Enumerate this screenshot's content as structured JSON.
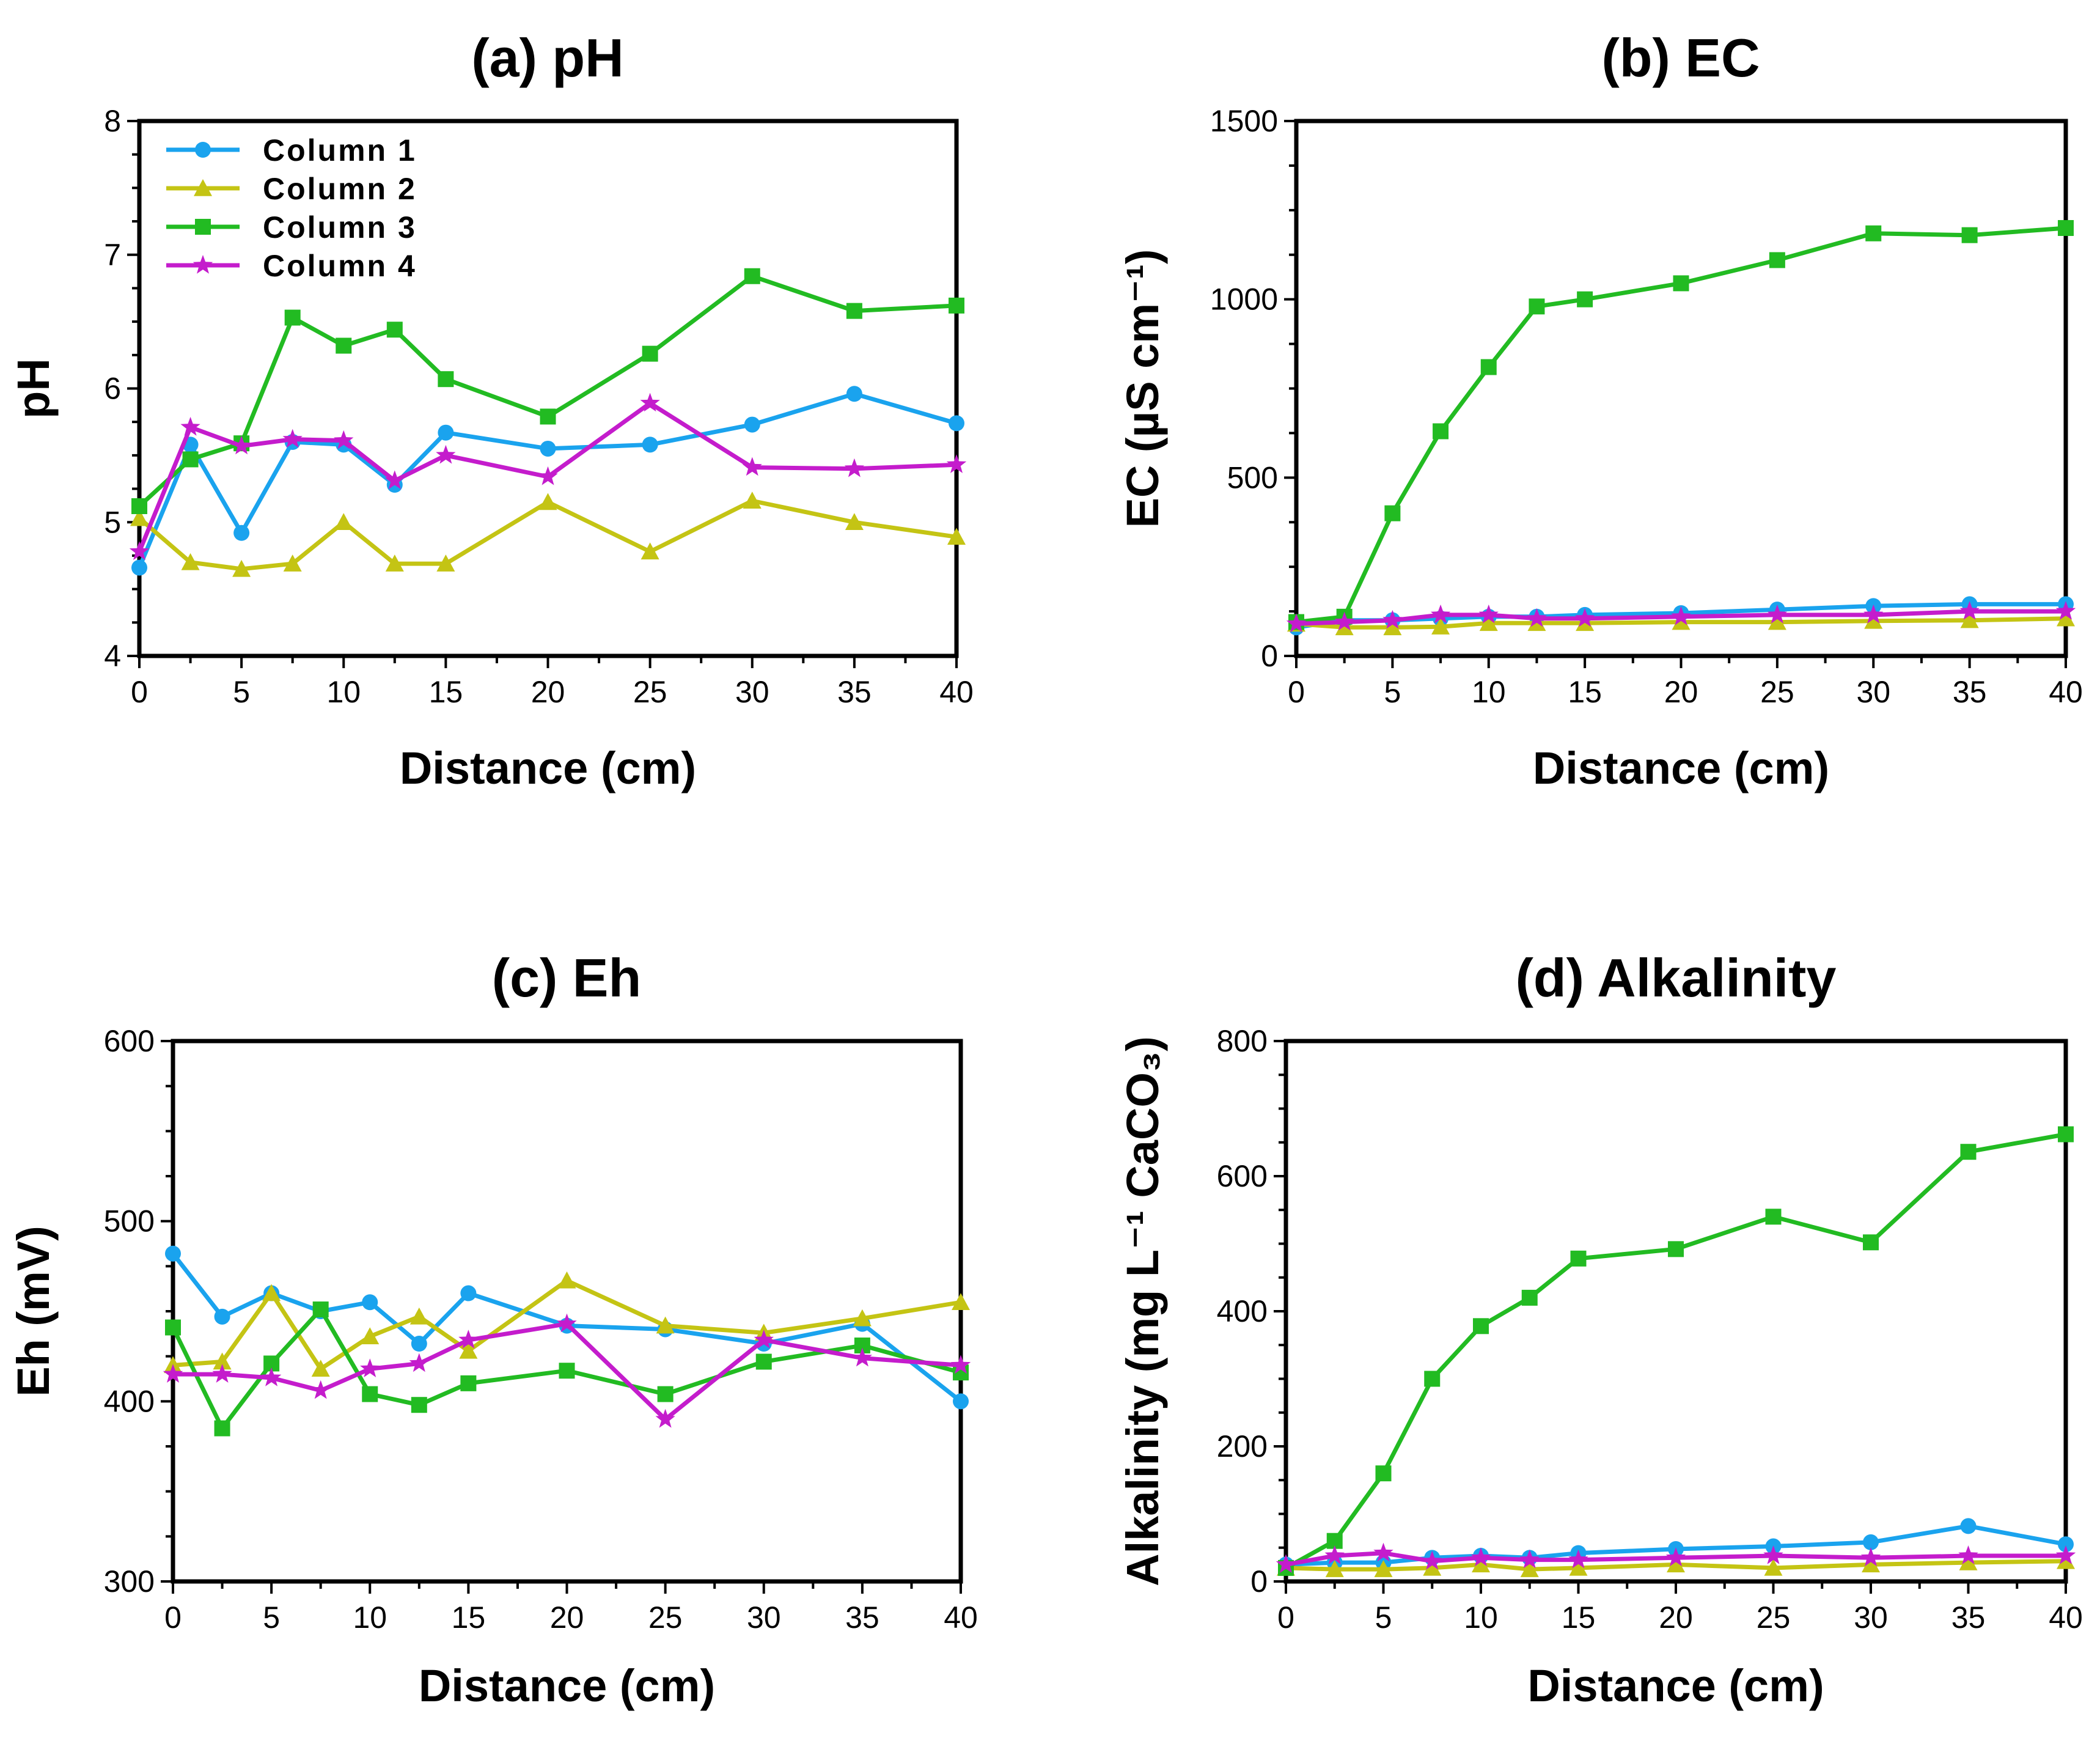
{
  "colors": {
    "Column 1": "#1aa3ee",
    "Column 2": "#c4c414",
    "Column 3": "#22bb22",
    "Column 4": "#c41ccc"
  },
  "legend": [
    "Column 1",
    "Column 2",
    "Column 3",
    "Column 4"
  ],
  "chart_data": [
    {
      "id": "a",
      "type": "line",
      "title": "(a) pH",
      "xlabel": "Distance (cm)",
      "ylabel": "pH",
      "xlim": [
        0,
        40
      ],
      "ylim": [
        4,
        8
      ],
      "xticks": [
        "0",
        "5",
        "10",
        "15",
        "20",
        "25",
        "30",
        "35",
        "40"
      ],
      "yticks": [
        "4",
        "5",
        "6",
        "7",
        "8"
      ],
      "x": [
        0,
        2.5,
        5,
        7.5,
        10,
        12.5,
        15,
        20,
        25,
        30,
        35,
        40
      ],
      "legend_position": "top-left",
      "series": [
        {
          "name": "Column 1",
          "marker": "circle",
          "values": [
            4.66,
            5.58,
            4.92,
            5.6,
            5.58,
            5.28,
            5.67,
            5.55,
            5.58,
            5.73,
            5.96,
            5.74
          ]
        },
        {
          "name": "Column 2",
          "marker": "triangle",
          "values": [
            5.03,
            4.7,
            4.65,
            4.69,
            5.0,
            4.69,
            4.69,
            5.15,
            4.78,
            5.16,
            5.0,
            4.89
          ]
        },
        {
          "name": "Column 3",
          "marker": "square",
          "values": [
            5.12,
            5.47,
            5.59,
            6.53,
            6.32,
            6.44,
            6.07,
            5.79,
            6.26,
            6.84,
            6.58,
            6.62
          ]
        },
        {
          "name": "Column 4",
          "marker": "star",
          "values": [
            4.78,
            5.71,
            5.57,
            5.62,
            5.61,
            5.31,
            5.5,
            5.34,
            5.89,
            5.41,
            5.4,
            5.43
          ]
        }
      ]
    },
    {
      "id": "b",
      "type": "line",
      "title": "(b) EC",
      "xlabel": "Distance (cm)",
      "ylabel": "EC (µS cm⁻¹)",
      "xlim": [
        0,
        40
      ],
      "ylim": [
        0,
        1500
      ],
      "xticks": [
        "0",
        "5",
        "10",
        "15",
        "20",
        "25",
        "30",
        "35",
        "40"
      ],
      "yticks": [
        "0",
        "500",
        "1000",
        "1500"
      ],
      "x": [
        0,
        2.5,
        5,
        7.5,
        10,
        12.5,
        15,
        20,
        25,
        30,
        35,
        40
      ],
      "series": [
        {
          "name": "Column 1",
          "marker": "circle",
          "values": [
            80,
            100,
            100,
            105,
            110,
            110,
            115,
            120,
            130,
            140,
            145,
            145
          ]
        },
        {
          "name": "Column 2",
          "marker": "triangle",
          "values": [
            90,
            80,
            80,
            82,
            92,
            92,
            92,
            95,
            95,
            98,
            100,
            105
          ]
        },
        {
          "name": "Column 3",
          "marker": "square",
          "values": [
            95,
            110,
            400,
            630,
            810,
            980,
            1000,
            1045,
            1110,
            1185,
            1180,
            1200
          ]
        },
        {
          "name": "Column 4",
          "marker": "star",
          "values": [
            90,
            95,
            100,
            115,
            115,
            105,
            105,
            110,
            115,
            115,
            125,
            125
          ]
        }
      ]
    },
    {
      "id": "c",
      "type": "line",
      "title": "(c) Eh",
      "xlabel": "Distance (cm)",
      "ylabel": "Eh (mV)",
      "xlim": [
        0,
        40
      ],
      "ylim": [
        300,
        600
      ],
      "xticks": [
        "0",
        "5",
        "10",
        "15",
        "20",
        "25",
        "30",
        "35",
        "40"
      ],
      "yticks": [
        "300",
        "400",
        "500",
        "600"
      ],
      "x": [
        0,
        2.5,
        5,
        7.5,
        10,
        12.5,
        15,
        20,
        25,
        30,
        35,
        40
      ],
      "series": [
        {
          "name": "Column 1",
          "marker": "circle",
          "values": [
            482,
            447,
            460,
            450,
            455,
            432,
            460,
            442,
            440,
            432,
            443,
            400
          ]
        },
        {
          "name": "Column 2",
          "marker": "triangle",
          "values": [
            420,
            422,
            460,
            418,
            436,
            447,
            428,
            467,
            442,
            438,
            446,
            455
          ]
        },
        {
          "name": "Column 3",
          "marker": "square",
          "values": [
            441,
            385,
            421,
            451,
            404,
            398,
            410,
            417,
            404,
            422,
            431,
            416
          ]
        },
        {
          "name": "Column 4",
          "marker": "star",
          "values": [
            415,
            415,
            413,
            406,
            418,
            421,
            434,
            443,
            390,
            434,
            424,
            420
          ]
        }
      ]
    },
    {
      "id": "d",
      "type": "line",
      "title": "(d) Alkalinity",
      "xlabel": "Distance (cm)",
      "ylabel": "Alkalinity (mg L⁻¹ CaCO₃)",
      "xlim": [
        0,
        40
      ],
      "ylim": [
        0,
        800
      ],
      "xticks": [
        "0",
        "5",
        "10",
        "15",
        "20",
        "25",
        "30",
        "35",
        "40"
      ],
      "yticks": [
        "0",
        "200",
        "400",
        "600",
        "800"
      ],
      "x": [
        0,
        2.5,
        5,
        7.5,
        10,
        12.5,
        15,
        20,
        25,
        30,
        35,
        40
      ],
      "series": [
        {
          "name": "Column 1",
          "marker": "circle",
          "values": [
            25,
            28,
            28,
            35,
            38,
            35,
            42,
            48,
            52,
            58,
            82,
            55
          ]
        },
        {
          "name": "Column 2",
          "marker": "triangle",
          "values": [
            20,
            18,
            18,
            20,
            25,
            18,
            20,
            25,
            20,
            25,
            28,
            30
          ]
        },
        {
          "name": "Column 3",
          "marker": "square",
          "values": [
            20,
            60,
            160,
            300,
            378,
            420,
            478,
            492,
            540,
            502,
            636,
            662
          ]
        },
        {
          "name": "Column 4",
          "marker": "star",
          "values": [
            25,
            38,
            42,
            30,
            35,
            32,
            32,
            35,
            38,
            35,
            38,
            38
          ]
        }
      ]
    }
  ]
}
